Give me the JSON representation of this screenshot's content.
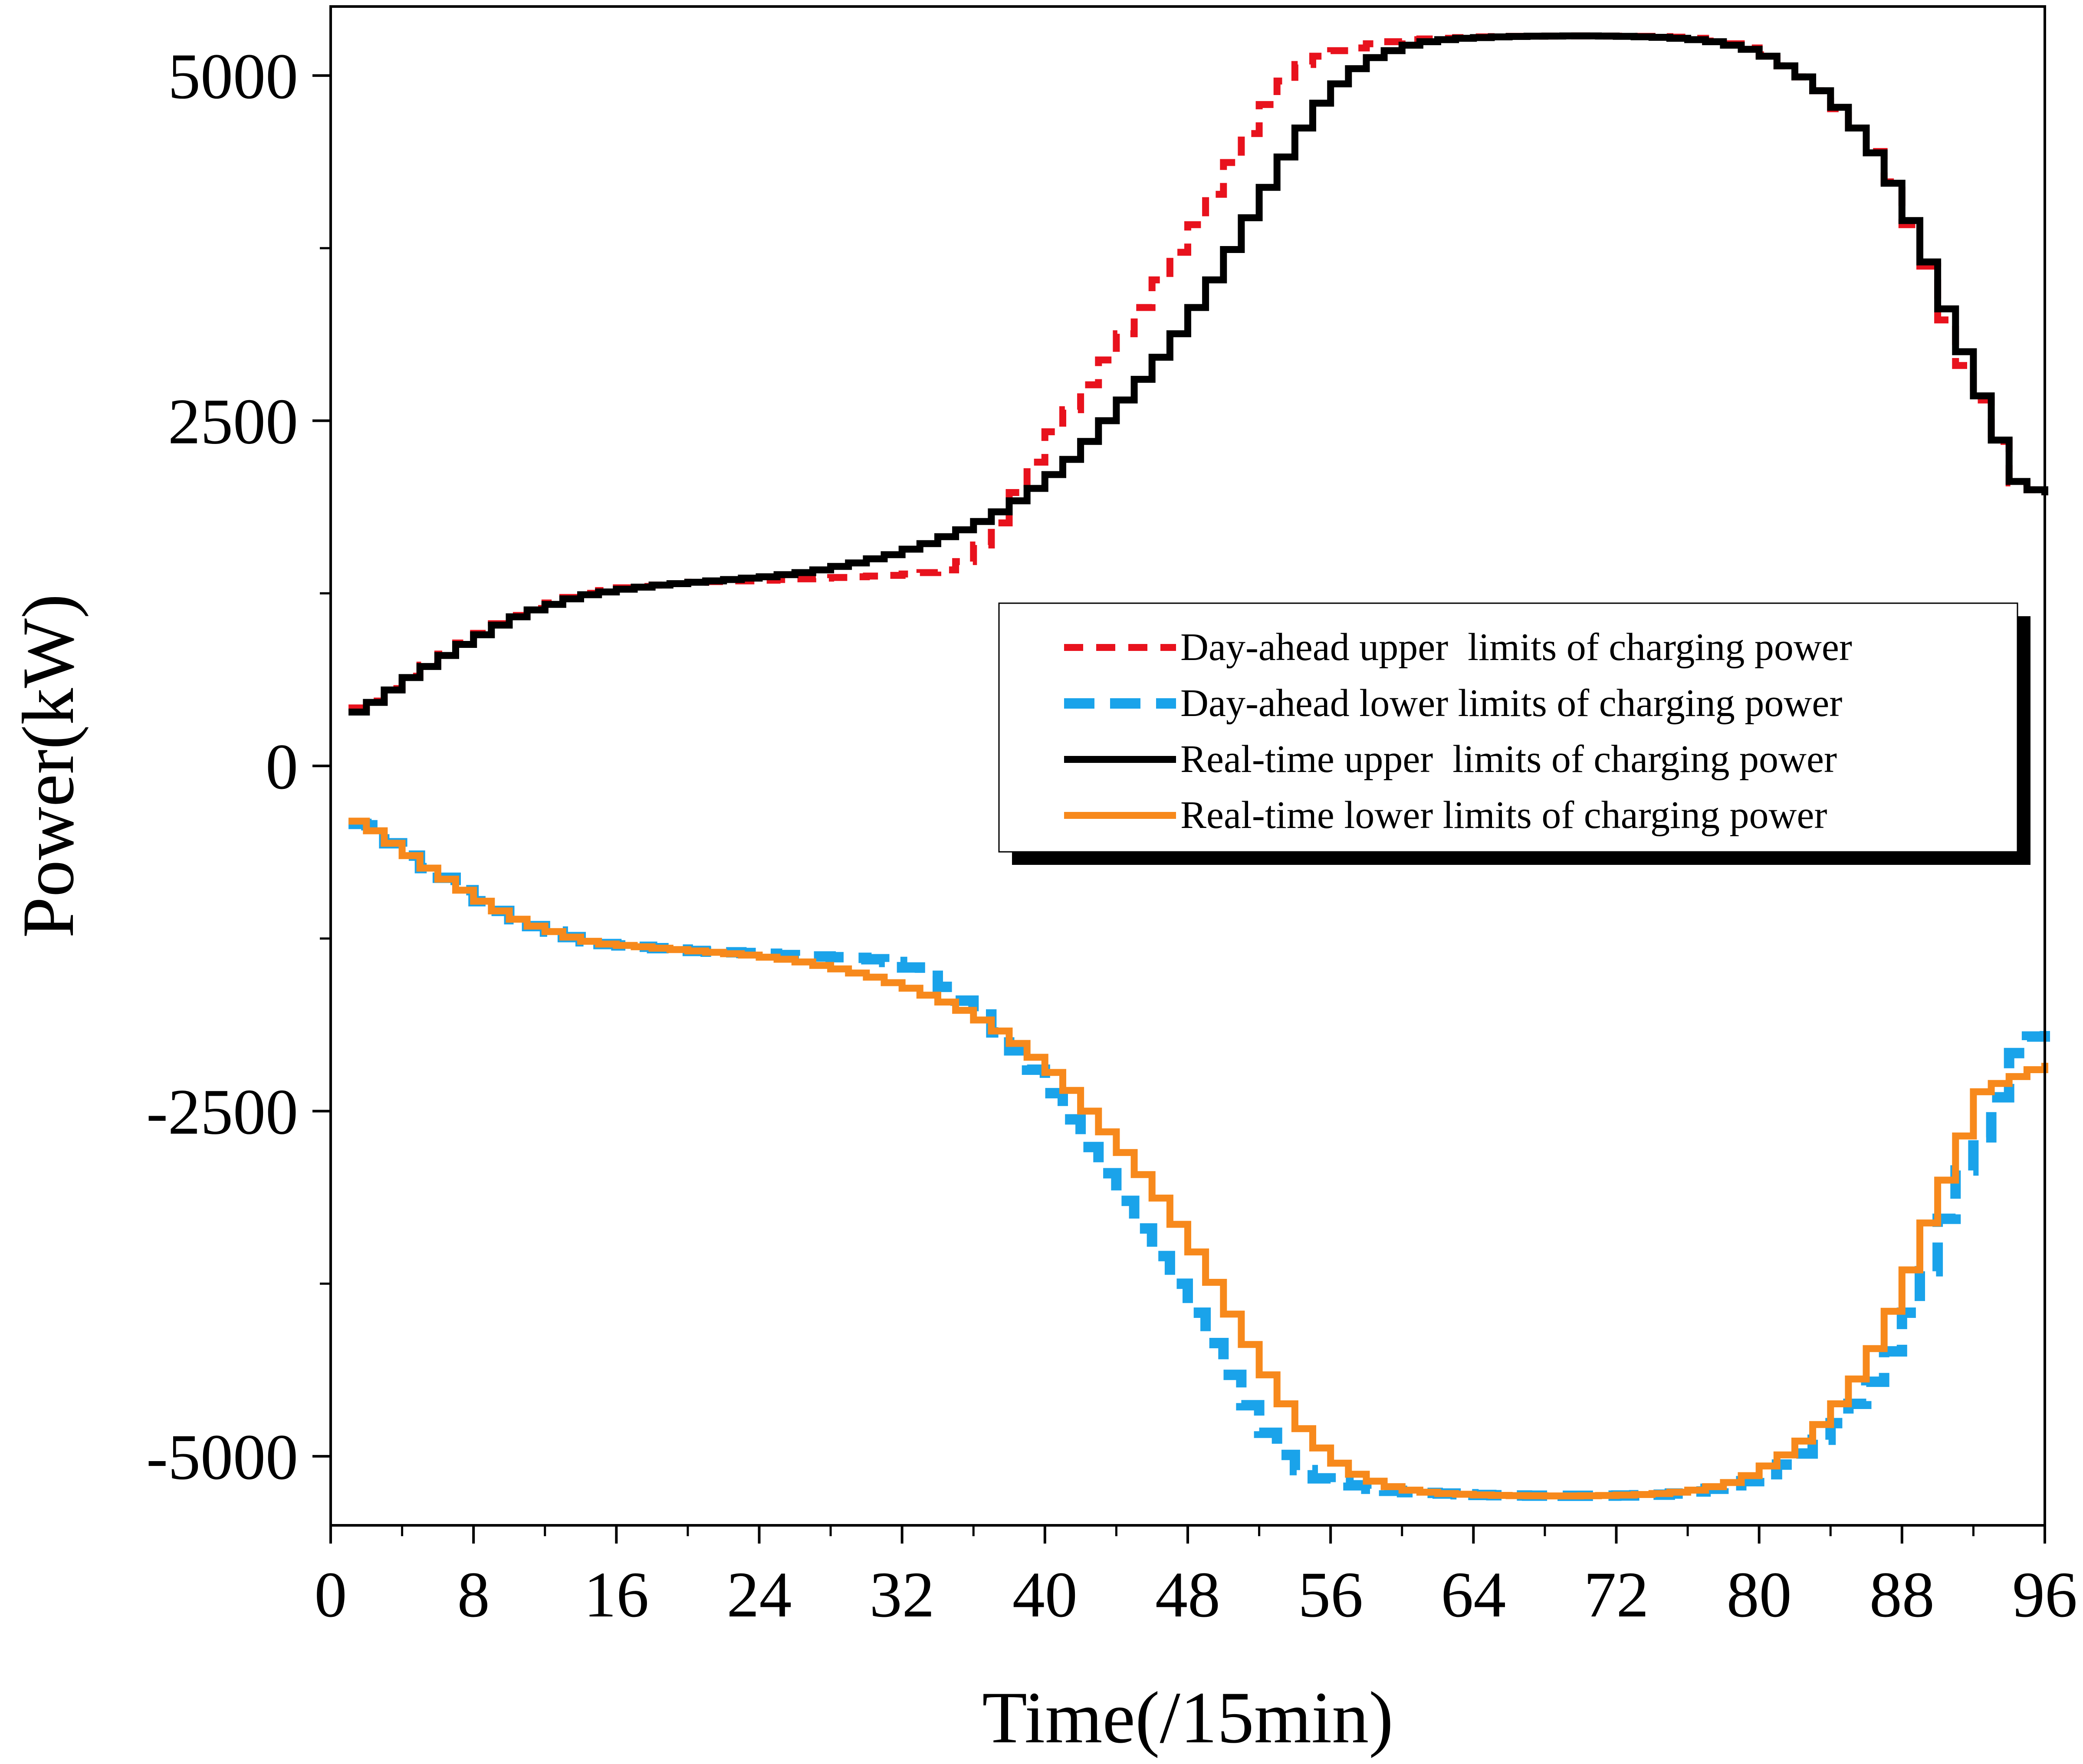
{
  "chart_data": {
    "type": "line",
    "title": "",
    "xlabel": "Time(/15min)",
    "ylabel": "Power(kW)",
    "xlim": [
      0,
      96
    ],
    "ylim": [
      -5500,
      5500
    ],
    "x_ticks": [
      0,
      8,
      16,
      24,
      32,
      40,
      48,
      56,
      64,
      72,
      80,
      88,
      96
    ],
    "x_tick_labels": [
      "0",
      "8",
      "16",
      "24",
      "32",
      "40",
      "48",
      "56",
      "64",
      "72",
      "80",
      "88",
      "96"
    ],
    "y_ticks": [
      -5000,
      -2500,
      0,
      2500,
      5000
    ],
    "y_tick_labels": [
      "-5000",
      "-2500",
      "0",
      "2500",
      "5000"
    ],
    "grid": false,
    "legend_position": "center-right",
    "step": true,
    "x": [
      1,
      2,
      3,
      4,
      5,
      6,
      7,
      8,
      9,
      10,
      11,
      12,
      13,
      14,
      15,
      16,
      17,
      18,
      19,
      20,
      21,
      22,
      23,
      24,
      25,
      26,
      27,
      28,
      29,
      30,
      31,
      32,
      33,
      34,
      35,
      36,
      37,
      38,
      39,
      40,
      41,
      42,
      43,
      44,
      45,
      46,
      47,
      48,
      49,
      50,
      51,
      52,
      53,
      54,
      55,
      56,
      57,
      58,
      59,
      60,
      61,
      62,
      63,
      64,
      65,
      66,
      67,
      68,
      69,
      70,
      71,
      72,
      73,
      74,
      75,
      76,
      77,
      78,
      79,
      80,
      81,
      82,
      83,
      84,
      85,
      86,
      87,
      88,
      89,
      90,
      91,
      92,
      93,
      94,
      95,
      96
    ],
    "series": [
      {
        "name": "Day-ahead upper  limits of charging power",
        "color": "#e8121d",
        "style": "dashed",
        "values": [
          420,
          470,
          560,
          650,
          730,
          810,
          890,
          960,
          1030,
          1090,
          1140,
          1180,
          1220,
          1250,
          1270,
          1290,
          1300,
          1310,
          1320,
          1330,
          1335,
          1340,
          1340,
          1345,
          1350,
          1355,
          1360,
          1365,
          1370,
          1375,
          1380,
          1390,
          1400,
          1420,
          1480,
          1600,
          1760,
          1980,
          2200,
          2420,
          2580,
          2760,
          2940,
          3130,
          3320,
          3520,
          3720,
          3920,
          4140,
          4370,
          4580,
          4790,
          4960,
          5080,
          5140,
          5180,
          5200,
          5230,
          5245,
          5260,
          5265,
          5270,
          5275,
          5280,
          5282,
          5284,
          5285,
          5286,
          5287,
          5287,
          5286,
          5285,
          5284,
          5282,
          5278,
          5270,
          5250,
          5230,
          5200,
          5150,
          5070,
          4990,
          4890,
          4760,
          4620,
          4450,
          4230,
          3920,
          3620,
          3230,
          2900,
          2650,
          2350,
          2050,
          2000,
          1960
        ]
      },
      {
        "name": "Day-ahead lower limits of charging power",
        "color": "#1aa3ea",
        "style": "dashed",
        "values": [
          -420,
          -430,
          -560,
          -650,
          -740,
          -810,
          -900,
          -980,
          -1050,
          -1110,
          -1160,
          -1200,
          -1240,
          -1270,
          -1290,
          -1300,
          -1310,
          -1320,
          -1330,
          -1340,
          -1345,
          -1350,
          -1355,
          -1360,
          -1370,
          -1375,
          -1380,
          -1385,
          -1390,
          -1400,
          -1420,
          -1460,
          -1520,
          -1600,
          -1700,
          -1800,
          -1930,
          -2060,
          -2200,
          -2370,
          -2560,
          -2760,
          -2950,
          -3150,
          -3350,
          -3550,
          -3750,
          -3960,
          -4180,
          -4410,
          -4630,
          -4830,
          -4990,
          -5100,
          -5160,
          -5190,
          -5210,
          -5235,
          -5250,
          -5260,
          -5265,
          -5270,
          -5275,
          -5280,
          -5282,
          -5284,
          -5285,
          -5285,
          -5286,
          -5286,
          -5285,
          -5284,
          -5282,
          -5278,
          -5270,
          -5255,
          -5235,
          -5210,
          -5180,
          -5130,
          -5060,
          -4980,
          -4880,
          -4760,
          -4620,
          -4460,
          -4240,
          -3960,
          -3660,
          -3280,
          -2930,
          -2690,
          -2400,
          -2080,
          -1960,
          -1920
        ]
      },
      {
        "name": "Real-time upper  limits of charging power",
        "color": "#000000",
        "style": "solid",
        "values": [
          390,
          460,
          550,
          640,
          720,
          800,
          880,
          950,
          1020,
          1080,
          1130,
          1170,
          1210,
          1240,
          1260,
          1280,
          1295,
          1310,
          1320,
          1330,
          1340,
          1350,
          1360,
          1370,
          1385,
          1400,
          1420,
          1445,
          1470,
          1500,
          1530,
          1570,
          1610,
          1660,
          1710,
          1770,
          1840,
          1920,
          2010,
          2110,
          2220,
          2350,
          2500,
          2650,
          2800,
          2960,
          3130,
          3320,
          3520,
          3740,
          3970,
          4190,
          4410,
          4620,
          4800,
          4940,
          5050,
          5130,
          5180,
          5220,
          5245,
          5260,
          5270,
          5275,
          5280,
          5283,
          5285,
          5286,
          5287,
          5287,
          5286,
          5284,
          5281,
          5277,
          5270,
          5260,
          5245,
          5220,
          5190,
          5140,
          5070,
          4990,
          4890,
          4770,
          4620,
          4440,
          4220,
          3950,
          3650,
          3310,
          3000,
          2680,
          2360,
          2060,
          2000,
          1960
        ]
      },
      {
        "name": "Real-time lower limits of charging power",
        "color": "#f7891c",
        "style": "solid",
        "values": [
          -400,
          -470,
          -560,
          -650,
          -740,
          -820,
          -900,
          -980,
          -1050,
          -1110,
          -1160,
          -1200,
          -1240,
          -1270,
          -1290,
          -1300,
          -1310,
          -1320,
          -1330,
          -1340,
          -1350,
          -1360,
          -1370,
          -1385,
          -1400,
          -1420,
          -1445,
          -1470,
          -1500,
          -1530,
          -1570,
          -1610,
          -1660,
          -1710,
          -1770,
          -1840,
          -1920,
          -2010,
          -2110,
          -2220,
          -2350,
          -2500,
          -2650,
          -2800,
          -2960,
          -3130,
          -3320,
          -3520,
          -3740,
          -3970,
          -4190,
          -4410,
          -4620,
          -4800,
          -4940,
          -5050,
          -5130,
          -5180,
          -5220,
          -5245,
          -5260,
          -5270,
          -5275,
          -5280,
          -5283,
          -5285,
          -5286,
          -5287,
          -5287,
          -5286,
          -5284,
          -5281,
          -5277,
          -5270,
          -5260,
          -5245,
          -5220,
          -5190,
          -5140,
          -5070,
          -4990,
          -4890,
          -4770,
          -4620,
          -4440,
          -4220,
          -3950,
          -3650,
          -3310,
          -3000,
          -2680,
          -2360,
          -2300,
          -2250,
          -2200,
          -2150
        ]
      }
    ]
  }
}
